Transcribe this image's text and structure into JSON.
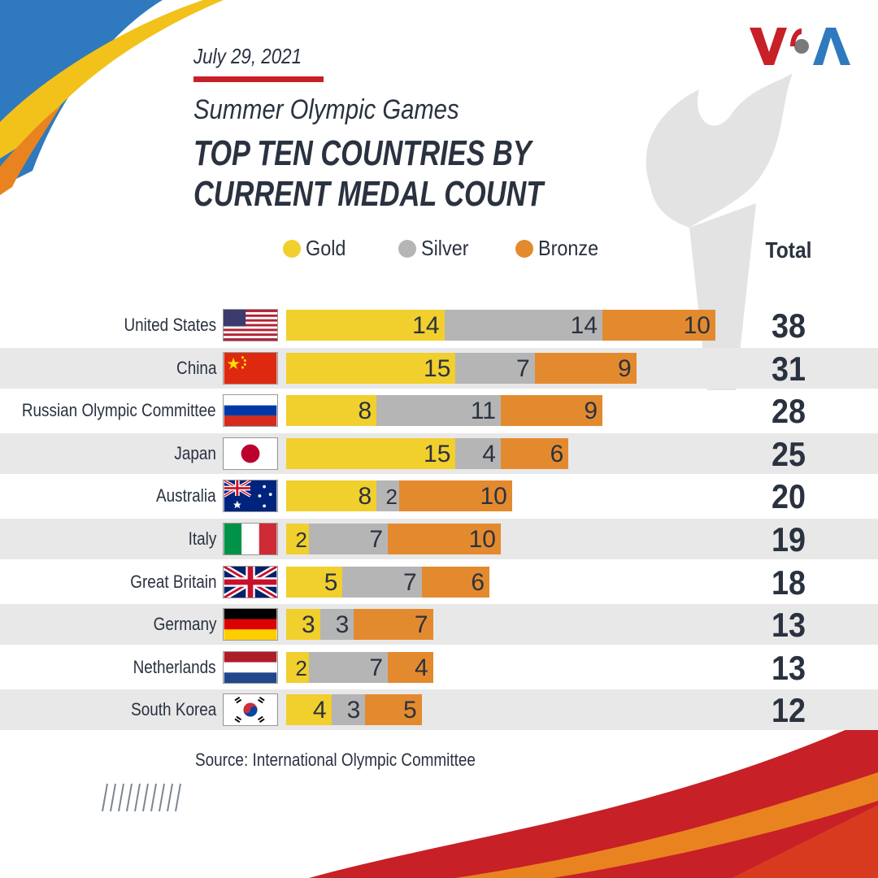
{
  "header": {
    "date": "July 29, 2021",
    "subtitle": "Summer Olympic Games",
    "title_line1": "TOP TEN COUNTRIES BY",
    "title_line2": "CURRENT MEDAL COUNT",
    "logo_text": "VOA"
  },
  "colors": {
    "gold": "#f1cf2d",
    "silver": "#b5b5b5",
    "bronze": "#e48a2e",
    "text": "#2a3240",
    "red": "#c72027",
    "blue": "#2f79be"
  },
  "chart_data": {
    "type": "bar",
    "orientation": "horizontal",
    "stacked": true,
    "title": "TOP TEN COUNTRIES BY CURRENT MEDAL COUNT",
    "subtitle": "Summer Olympic Games",
    "categories": [
      "United States",
      "China",
      "Russian Olympic Committee",
      "Japan",
      "Australia",
      "Italy",
      "Great Britain",
      "Germany",
      "Netherlands",
      "South Korea"
    ],
    "series": [
      {
        "name": "Gold",
        "values": [
          14,
          15,
          8,
          15,
          8,
          2,
          5,
          3,
          2,
          4
        ]
      },
      {
        "name": "Silver",
        "values": [
          14,
          7,
          11,
          4,
          2,
          7,
          7,
          3,
          7,
          3
        ]
      },
      {
        "name": "Bronze",
        "values": [
          10,
          9,
          9,
          6,
          10,
          10,
          6,
          7,
          4,
          5
        ]
      }
    ],
    "totals": [
      38,
      31,
      28,
      25,
      20,
      19,
      18,
      13,
      13,
      12
    ],
    "total_label": "Total",
    "legend": [
      "Gold",
      "Silver",
      "Bronze"
    ],
    "legend_position": "top",
    "xlim": [
      0,
      38
    ],
    "source": "Source: International Olympic Committee"
  }
}
